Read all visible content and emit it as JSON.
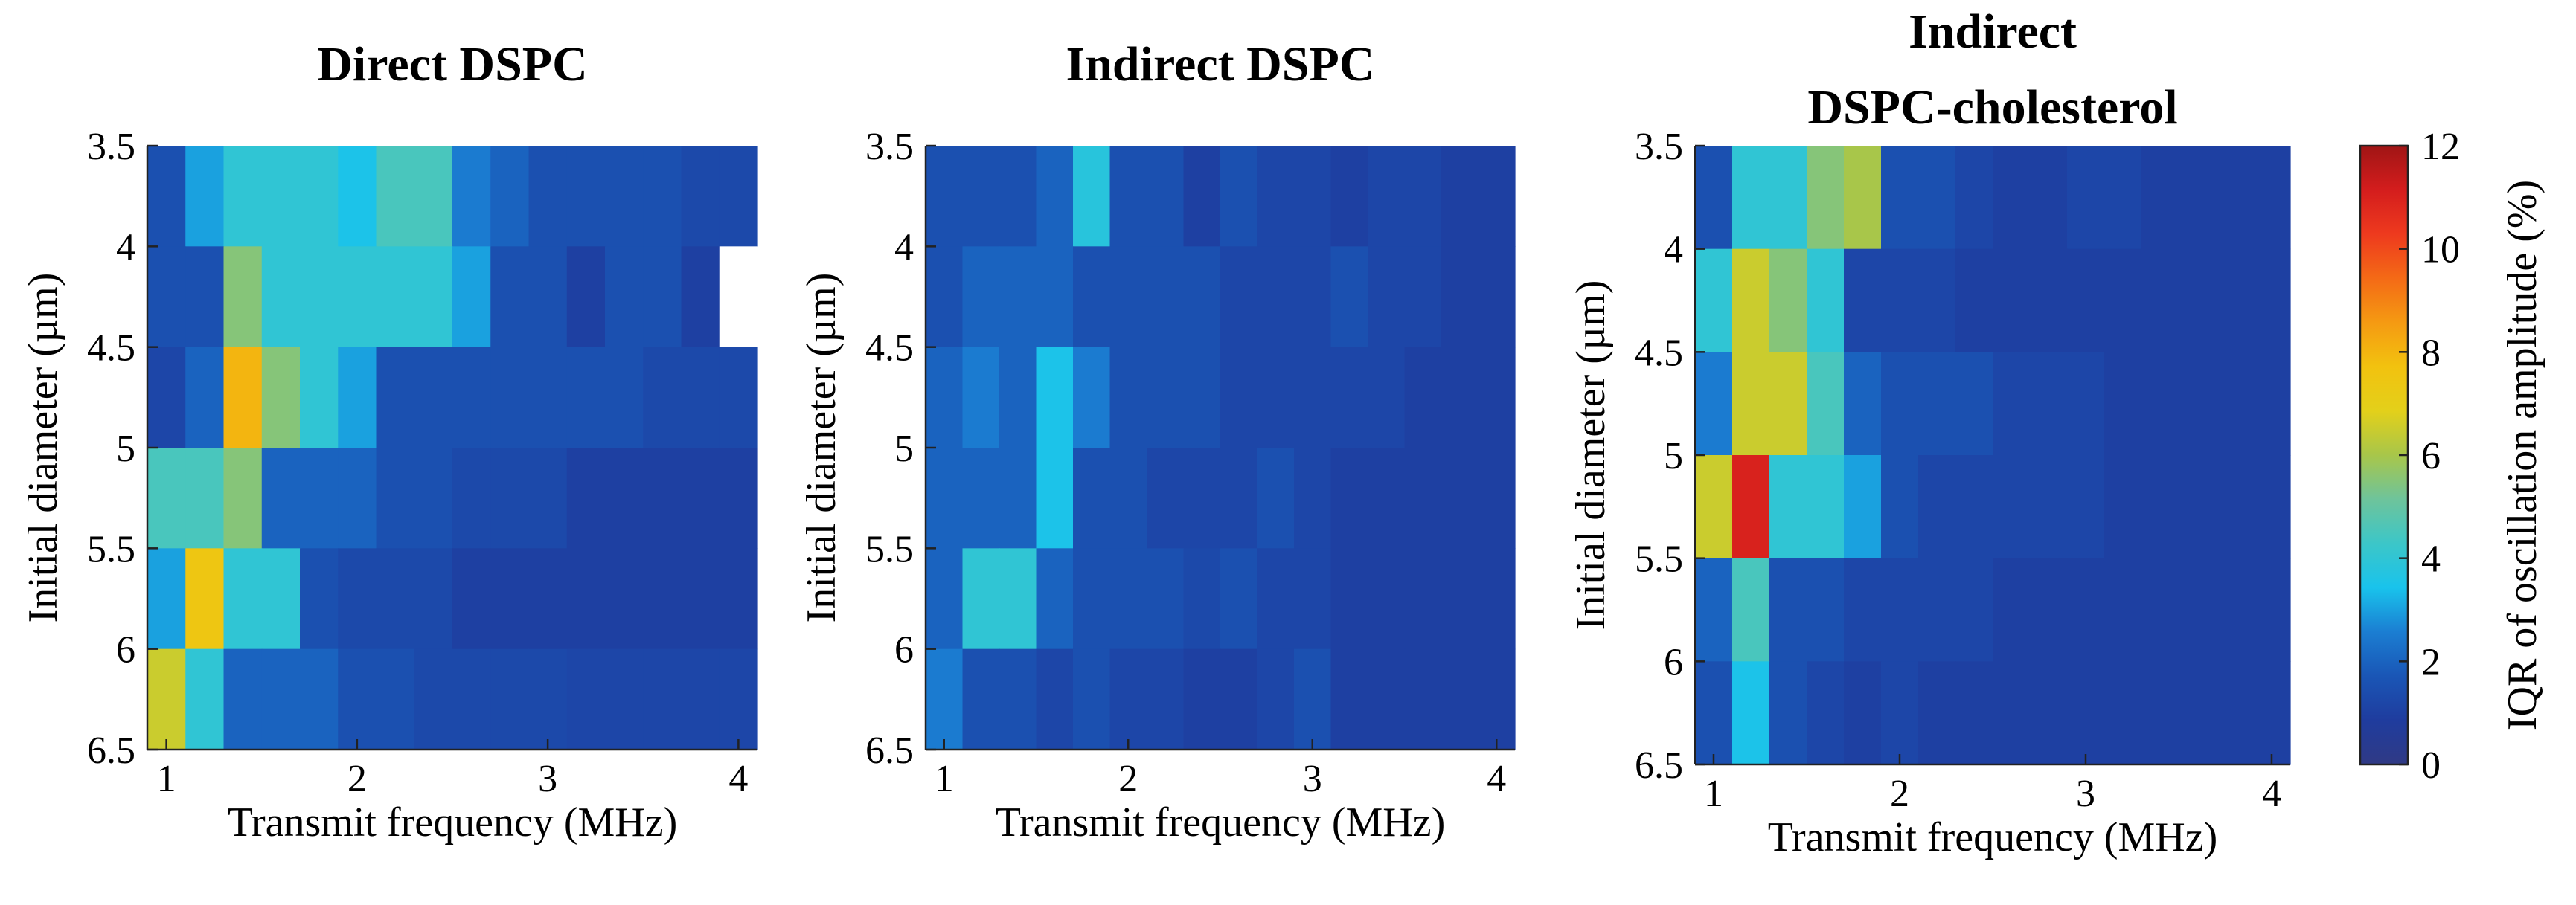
{
  "chart_data": [
    {
      "type": "heatmap",
      "title": [
        "Direct DSPC"
      ],
      "xlabel": "Transmit frequency (MHz)",
      "ylabel": "Initial diameter (µm)",
      "xlim": [
        0.9,
        4.1
      ],
      "ylim": [
        3.5,
        6.5
      ],
      "x_ticks": [
        "1",
        "2",
        "3",
        "4"
      ],
      "y_ticks": [
        "3.5",
        "4",
        "4.5",
        "5",
        "5.5",
        "6",
        "6.5"
      ],
      "x_bin_edges": [
        0.9,
        1.1,
        1.3,
        1.5,
        1.7,
        1.9,
        2.1,
        2.3,
        2.5,
        2.7,
        2.9,
        3.1,
        3.3,
        3.5,
        3.7,
        3.9,
        4.1
      ],
      "y_bin_edges": [
        3.5,
        4.0,
        4.5,
        5.0,
        5.5,
        6.0,
        6.5
      ],
      "nan_value": -1,
      "values": [
        [
          1.5,
          3.0,
          4.0,
          4.0,
          4.0,
          3.5,
          4.5,
          4.5,
          2.5,
          2.0,
          1.5,
          1.5,
          1.5,
          1.5,
          1.3,
          1.3
        ],
        [
          1.5,
          1.5,
          5.5,
          4.0,
          4.0,
          4.0,
          4.0,
          4.0,
          3.0,
          1.5,
          1.5,
          1.0,
          1.5,
          1.5,
          1.0,
          -1
        ],
        [
          1.2,
          2.0,
          8.0,
          5.5,
          4.0,
          3.0,
          1.5,
          1.5,
          1.5,
          1.5,
          1.5,
          1.5,
          1.5,
          1.3,
          1.3,
          1.3
        ],
        [
          4.5,
          4.5,
          5.5,
          2.0,
          2.0,
          2.0,
          1.5,
          1.5,
          1.3,
          1.3,
          1.3,
          1.0,
          1.0,
          1.0,
          1.0,
          1.0
        ],
        [
          3.0,
          7.5,
          4.0,
          4.0,
          1.5,
          1.3,
          1.3,
          1.3,
          1.0,
          1.0,
          1.0,
          1.0,
          1.0,
          1.0,
          1.0,
          1.0
        ],
        [
          6.5,
          4.0,
          2.0,
          2.0,
          2.0,
          1.5,
          1.5,
          1.3,
          1.3,
          1.3,
          1.3,
          1.2,
          1.2,
          1.2,
          1.2,
          1.2
        ]
      ]
    },
    {
      "type": "heatmap",
      "title": [
        "Indirect DSPC"
      ],
      "xlabel": "Transmit frequency (MHz)",
      "ylabel": "Initial diameter (µm)",
      "xlim": [
        0.9,
        4.1
      ],
      "ylim": [
        3.5,
        6.5
      ],
      "x_ticks": [
        "1",
        "2",
        "3",
        "4"
      ],
      "y_ticks": [
        "3.5",
        "4",
        "4.5",
        "5",
        "5.5",
        "6",
        "6.5"
      ],
      "x_bin_edges": [
        0.9,
        1.1,
        1.3,
        1.5,
        1.7,
        1.9,
        2.1,
        2.3,
        2.5,
        2.7,
        2.9,
        3.1,
        3.3,
        3.5,
        3.7,
        3.9,
        4.1
      ],
      "y_bin_edges": [
        3.5,
        4.0,
        4.5,
        5.0,
        5.5,
        6.0,
        6.5
      ],
      "nan_value": -1,
      "values": [
        [
          1.5,
          1.5,
          1.5,
          2.0,
          3.8,
          1.5,
          1.5,
          1.0,
          1.5,
          1.2,
          1.2,
          1.0,
          1.2,
          1.2,
          1.0,
          1.0
        ],
        [
          1.5,
          2.0,
          2.0,
          2.0,
          1.5,
          1.5,
          1.5,
          1.5,
          1.2,
          1.2,
          1.2,
          1.5,
          1.2,
          1.2,
          1.0,
          1.0
        ],
        [
          2.0,
          2.5,
          2.0,
          3.5,
          2.5,
          1.5,
          1.5,
          1.5,
          1.2,
          1.2,
          1.2,
          1.2,
          1.2,
          1.0,
          1.0,
          1.0
        ],
        [
          2.0,
          2.0,
          2.0,
          3.5,
          1.5,
          1.5,
          1.2,
          1.2,
          1.2,
          1.5,
          1.2,
          1.0,
          1.0,
          1.0,
          1.0,
          1.0
        ],
        [
          2.0,
          4.0,
          4.0,
          2.0,
          1.5,
          1.5,
          1.5,
          1.3,
          1.5,
          1.2,
          1.2,
          1.0,
          1.0,
          1.0,
          1.0,
          1.0
        ],
        [
          2.5,
          1.5,
          1.5,
          1.2,
          1.5,
          1.2,
          1.2,
          1.0,
          1.0,
          1.2,
          1.5,
          1.0,
          1.0,
          1.0,
          1.0,
          1.0
        ]
      ]
    },
    {
      "type": "heatmap",
      "title": [
        "Indirect",
        "DSPC-cholesterol"
      ],
      "xlabel": "Transmit frequency (MHz)",
      "ylabel": "Initial diameter (µm)",
      "xlim": [
        0.9,
        4.1
      ],
      "ylim": [
        3.5,
        6.5
      ],
      "x_ticks": [
        "1",
        "2",
        "3",
        "4"
      ],
      "y_ticks": [
        "3.5",
        "4",
        "4.5",
        "5",
        "5.5",
        "6",
        "6.5"
      ],
      "x_bin_edges": [
        0.9,
        1.1,
        1.3,
        1.5,
        1.7,
        1.9,
        2.1,
        2.3,
        2.5,
        2.7,
        2.9,
        3.1,
        3.3,
        3.5,
        3.7,
        3.9,
        4.1
      ],
      "y_bin_edges": [
        3.5,
        4.0,
        4.5,
        5.0,
        5.5,
        6.0,
        6.5
      ],
      "nan_value": -1,
      "values": [
        [
          1.5,
          4.0,
          4.0,
          5.5,
          6.0,
          1.5,
          1.5,
          1.2,
          1.0,
          1.0,
          1.2,
          1.2,
          1.0,
          1.0,
          1.0,
          1.0
        ],
        [
          4.0,
          6.5,
          5.5,
          4.0,
          1.2,
          1.2,
          1.2,
          1.0,
          1.0,
          1.0,
          1.0,
          1.0,
          1.0,
          1.0,
          1.0,
          1.0
        ],
        [
          2.5,
          6.5,
          6.5,
          4.5,
          2.0,
          1.5,
          1.5,
          1.5,
          1.2,
          1.2,
          1.2,
          1.0,
          1.0,
          1.0,
          1.0,
          1.0
        ],
        [
          6.5,
          11.0,
          4.0,
          4.0,
          3.0,
          1.5,
          1.2,
          1.2,
          1.2,
          1.2,
          1.2,
          1.0,
          1.0,
          1.0,
          1.0,
          1.0
        ],
        [
          2.0,
          4.5,
          1.5,
          1.5,
          1.2,
          1.2,
          1.2,
          1.2,
          1.0,
          1.0,
          1.0,
          1.0,
          1.0,
          1.0,
          1.0,
          1.0
        ],
        [
          1.5,
          3.5,
          1.5,
          1.2,
          1.0,
          1.2,
          1.0,
          1.0,
          1.0,
          1.0,
          1.0,
          1.0,
          1.0,
          1.0,
          1.0,
          1.0
        ]
      ]
    }
  ],
  "colorbar": {
    "label": "IQR of oscillation amplitude (%)",
    "range": [
      0,
      12
    ],
    "ticks": [
      "0",
      "2",
      "4",
      "6",
      "8",
      "10",
      "12"
    ],
    "colormap": "parula-jet",
    "nan_color": "#ffffff",
    "stops": [
      "#303a85",
      "#1f3c9e",
      "#1a56b6",
      "#1b7ed2",
      "#19c3ec",
      "#3cc6c8",
      "#6ec49b",
      "#a8c64a",
      "#e3d01a",
      "#f2c20f",
      "#f59a12",
      "#f46a16",
      "#ee3a1e",
      "#d41d1d",
      "#a01515"
    ]
  }
}
